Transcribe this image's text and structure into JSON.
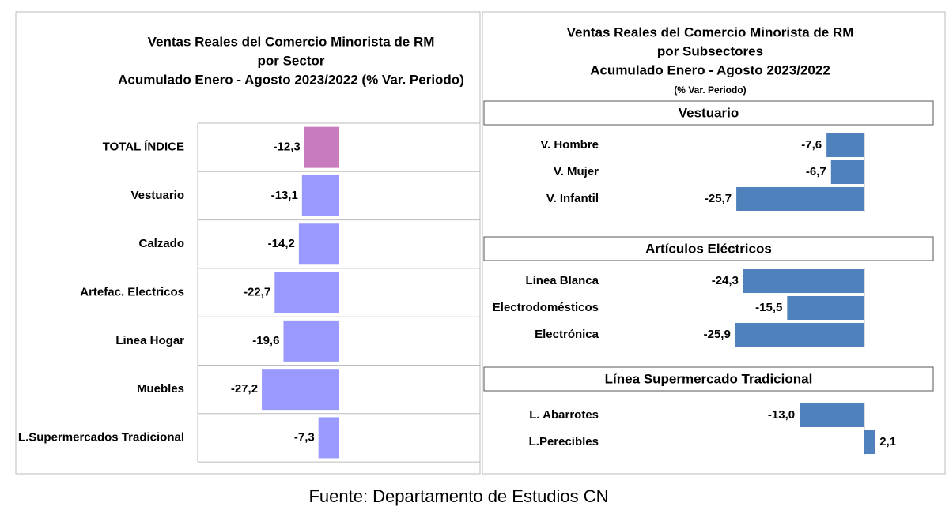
{
  "chart_data": [
    {
      "type": "bar",
      "title": [
        "Ventas Reales del Comercio Minorista de RM",
        "por Sector",
        "Acumulado Enero - Agosto 2023/2022 (% Var. Periodo)"
      ],
      "categories": [
        "TOTAL ÍNDICE",
        "Vestuario",
        "Calzado",
        "Artefac. Electricos",
        "Linea Hogar",
        "Muebles",
        "L.Supermercados Tradicional"
      ],
      "values": [
        -12.3,
        -13.1,
        -14.2,
        -22.7,
        -19.6,
        -27.2,
        -7.3
      ],
      "value_labels": [
        "-12,3",
        "-13,1",
        "-14,2",
        "-22,7",
        "-19,6",
        "-27,2",
        "-7,3"
      ],
      "colors": [
        "#c87bbd",
        "#9999ff",
        "#9999ff",
        "#9999ff",
        "#9999ff",
        "#9999ff",
        "#9999ff"
      ]
    },
    {
      "type": "grouped-bar",
      "title": [
        "Ventas Reales del Comercio Minorista de RM",
        "por Subsectores",
        "Acumulado Enero - Agosto 2023/2022"
      ],
      "subtitle": "(% Var. Periodo)",
      "color": "#4f81bd",
      "groups": [
        {
          "name": "Vestuario",
          "categories": [
            "V. Hombre",
            "V. Mujer",
            "V. Infantil"
          ],
          "values": [
            -7.6,
            -6.7,
            -25.7
          ],
          "value_labels": [
            "-7,6",
            "-6,7",
            "-25,7"
          ]
        },
        {
          "name": "Artículos Eléctricos",
          "categories": [
            "Línea Blanca",
            "Electrodomésticos",
            "Electrónica"
          ],
          "values": [
            -24.3,
            -15.5,
            -25.9
          ],
          "value_labels": [
            "-24,3",
            "-15,5",
            "-25,9"
          ]
        },
        {
          "name": "Línea  Supermercado Tradicional",
          "categories": [
            "L. Abarrotes",
            "L.Perecibles"
          ],
          "values": [
            -13.0,
            2.1
          ],
          "value_labels": [
            "-13,0",
            "2,1"
          ]
        }
      ]
    }
  ],
  "source": "Fuente: Departamento de Estudios CN"
}
